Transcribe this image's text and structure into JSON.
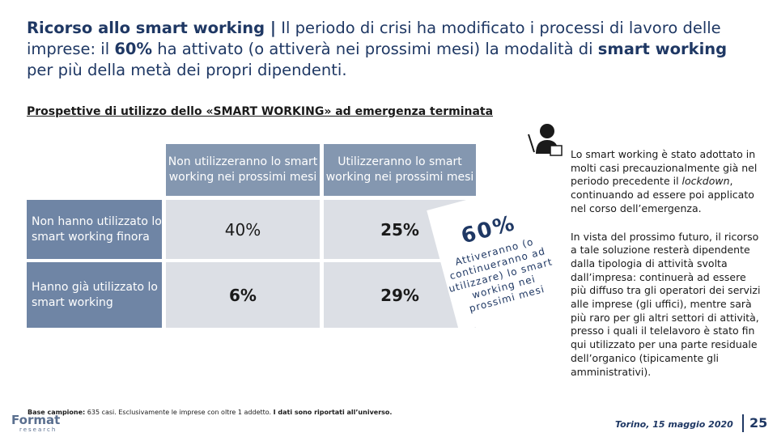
{
  "header": {
    "title": [
      {
        "text": "Ricorso allo smart working |",
        "bold": true
      },
      {
        "text": " Il periodo di crisi ha modificato i processi di lavoro delle imprese: il ",
        "bold": false
      },
      {
        "text": "60%",
        "bold": true
      },
      {
        "text": " ha attivato (o attiverà nei prossimi mesi) la modalità di ",
        "bold": false
      },
      {
        "text": "smart working",
        "bold": true
      },
      {
        "text": " per più della metà dei propri dipendenti.",
        "bold": false
      }
    ],
    "subtitle": "Prospettive di utilizzo dello «SMART WORKING» ad emergenza terminata"
  },
  "table": {
    "columns": [
      "Non utilizzeranno lo smart working nei prossimi mesi",
      "Utilizzeranno lo smart working nei prossimi mesi"
    ],
    "rows": [
      {
        "label": "Non hanno utilizzato lo smart working finora",
        "cells": [
          "40%",
          "25%"
        ]
      },
      {
        "label": "Hanno già utilizzato lo smart working",
        "cells": [
          "6%",
          "29%"
        ]
      }
    ]
  },
  "callout": {
    "value": "60%",
    "text": "Attiveranno (o continueranno ad utilizzare) lo smart working nei prossimi mesi"
  },
  "notes": {
    "p1": [
      "Lo smart working è stato adottato in molti casi precauzionalmente già nel periodo precedente il ",
      "lockdown",
      ", continuando ad essere poi applicato nel corso dell’emergenza."
    ],
    "p2": "In vista del prossimo futuro, il ricorso a tale soluzione resterà dipendente dalla tipologia di attività svolta dall’impresa: continuerà ad essere più diffuso tra gli operatori dei servizi alle imprese (gli uffici), mentre sarà più raro per gli altri settori di attività, presso i quali il telelavoro è stato fin qui utilizzato per una parte residuale dell’organico (tipicamente gli amministrativi)."
  },
  "footer": {
    "note": [
      {
        "text": "Base campione:",
        "bold": true
      },
      {
        "text": " 635 casi. Esclusivamente le imprese con oltre 1 addetto. ",
        "bold": false
      },
      {
        "text": "I dati sono riportati all’universo.",
        "bold": true
      }
    ],
    "logo": "Format",
    "logo_sub": "research",
    "date": "Torino, 15 maggio 2020",
    "page": "25"
  }
}
